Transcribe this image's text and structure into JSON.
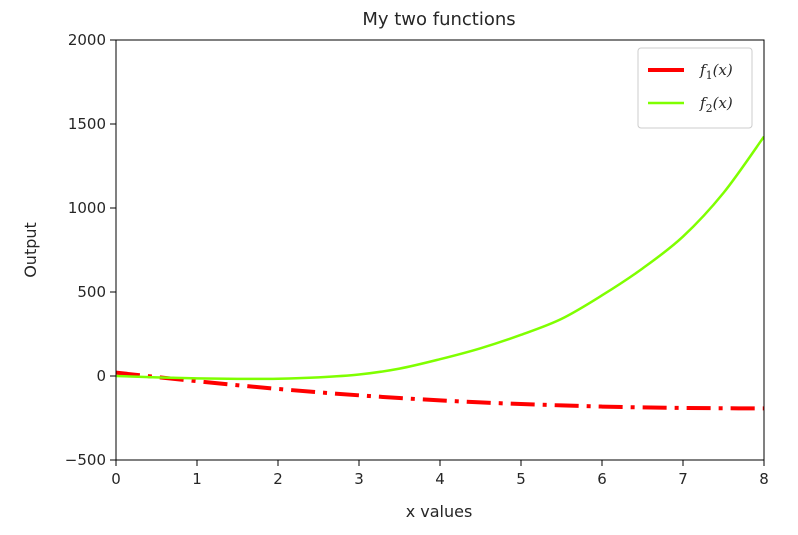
{
  "chart_data": {
    "type": "line",
    "title": "My two functions",
    "xlabel": "x values",
    "ylabel": "Output",
    "xlim": [
      0,
      8
    ],
    "ylim": [
      -500,
      2000
    ],
    "x_ticks": [
      "0",
      "1",
      "2",
      "3",
      "4",
      "5",
      "6",
      "7",
      "8"
    ],
    "y_ticks": [
      "2000",
      "1500",
      "1000",
      "500",
      "0",
      "−500"
    ],
    "grid": false,
    "legend_position": "top-right",
    "x": [
      0,
      0.5,
      1,
      1.5,
      2,
      2.5,
      3,
      3.5,
      4,
      4.5,
      5,
      5.5,
      6,
      6.5,
      7,
      7.5,
      8
    ],
    "series": [
      {
        "name": "f₁(x)",
        "name_main": "f",
        "name_sub": "1",
        "name_arg": "(x)",
        "color": "#ff0000",
        "line_style": "dashdot",
        "values": [
          20,
          -6,
          -31,
          -55,
          -77,
          -97,
          -115,
          -131,
          -145,
          -157,
          -167,
          -175,
          -182,
          -187,
          -190,
          -192,
          -193
        ]
      },
      {
        "name": "f₂(x)",
        "name_main": "f",
        "name_sub": "2",
        "name_arg": "(x)",
        "color": "#7fff00",
        "line_style": "solid",
        "values": [
          0,
          -8,
          -14,
          -17,
          -16,
          -8,
          9,
          44,
          100,
          165,
          245,
          340,
          480,
          640,
          830,
          1090,
          1425
        ]
      }
    ]
  }
}
